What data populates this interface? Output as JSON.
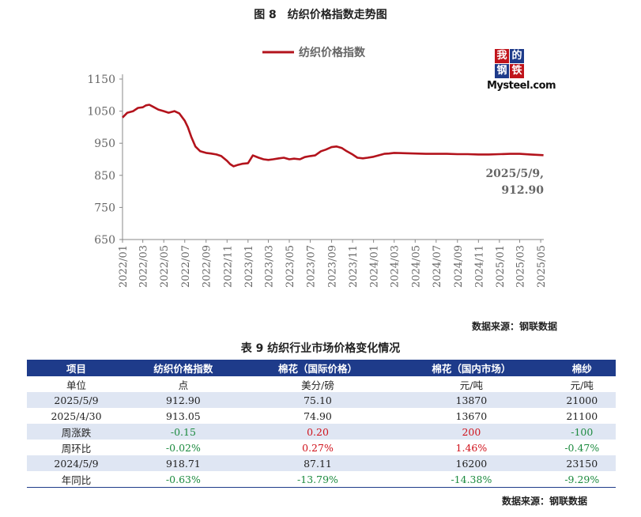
{
  "figure_title": "图 8　纺织价格指数走势图",
  "chart_source": "数据来源：钢联数据",
  "logo": {
    "cn": [
      "我",
      "的",
      "钢",
      "铁"
    ],
    "word": "Mysteel.com"
  },
  "chart_data": {
    "type": "line",
    "legend_position": "top",
    "grid": false,
    "ylim": [
      650,
      1150
    ],
    "yticks": [
      "650",
      "750",
      "850",
      "950",
      "1050",
      "1150"
    ],
    "xticks": [
      "2022/01",
      "2022/03",
      "2022/05",
      "2022/07",
      "2022/09",
      "2022/11",
      "2023/01",
      "2023/03",
      "2023/05",
      "2023/07",
      "2023/09",
      "2023/11",
      "2024/01",
      "2024/03",
      "2024/05",
      "2024/07",
      "2024/09",
      "2024/11",
      "2025/01",
      "2025/03",
      "2025/05"
    ],
    "annotation": [
      "2025/5/9,",
      "912.90"
    ],
    "series": [
      {
        "name": "纺织价格指数",
        "color": "#b3131c",
        "x": [
          "2022/01/01",
          "2022/01/15",
          "2022/02/01",
          "2022/02/15",
          "2022/03/01",
          "2022/03/10",
          "2022/03/20",
          "2022/04/01",
          "2022/04/15",
          "2022/05/01",
          "2022/05/15",
          "2022/06/01",
          "2022/06/15",
          "2022/07/01",
          "2022/07/10",
          "2022/07/20",
          "2022/08/01",
          "2022/08/15",
          "2022/09/01",
          "2022/09/15",
          "2022/10/01",
          "2022/10/15",
          "2022/11/01",
          "2022/11/10",
          "2022/11/20",
          "2022/12/01",
          "2022/12/15",
          "2023/01/01",
          "2023/01/15",
          "2023/02/01",
          "2023/02/15",
          "2023/03/01",
          "2023/03/15",
          "2023/04/01",
          "2023/04/15",
          "2023/05/01",
          "2023/05/15",
          "2023/06/01",
          "2023/06/15",
          "2023/07/01",
          "2023/07/15",
          "2023/08/01",
          "2023/08/15",
          "2023/09/01",
          "2023/09/15",
          "2023/10/01",
          "2023/10/15",
          "2023/11/01",
          "2023/11/15",
          "2023/12/01",
          "2023/12/15",
          "2024/01/01",
          "2024/01/15",
          "2024/02/01",
          "2024/02/15",
          "2024/03/01",
          "2024/04/01",
          "2024/05/01",
          "2024/06/01",
          "2024/07/01",
          "2024/08/01",
          "2024/09/01",
          "2024/10/01",
          "2024/11/01",
          "2024/12/01",
          "2025/01/01",
          "2025/02/01",
          "2025/03/01",
          "2025/04/01",
          "2025/05/09"
        ],
        "values": [
          1030,
          1045,
          1050,
          1060,
          1062,
          1068,
          1070,
          1063,
          1055,
          1050,
          1045,
          1050,
          1043,
          1020,
          1000,
          970,
          940,
          925,
          920,
          918,
          915,
          910,
          895,
          885,
          878,
          882,
          886,
          888,
          912,
          905,
          900,
          898,
          900,
          903,
          905,
          900,
          902,
          900,
          907,
          910,
          912,
          925,
          930,
          938,
          940,
          935,
          925,
          915,
          905,
          903,
          905,
          908,
          912,
          917,
          918,
          920,
          919,
          918,
          917,
          917,
          917,
          916,
          916,
          915,
          915,
          916,
          917,
          917,
          915,
          912.9
        ]
      }
    ]
  },
  "table": {
    "title": "表 9 纺织行业市场价格变化情况",
    "headers": [
      "项目",
      "纺织价格指数",
      "棉花（国际价格）",
      "棉花（国内市场）",
      "棉纱"
    ],
    "rows": [
      {
        "cells": [
          "单位",
          "点",
          "美分/磅",
          "元/吨",
          "元/吨"
        ],
        "tones": [
          "",
          "",
          "",
          "",
          ""
        ]
      },
      {
        "cells": [
          "2025/5/9",
          "912.90",
          "75.10",
          "13870",
          "21000"
        ],
        "tones": [
          "",
          "",
          "",
          "",
          ""
        ]
      },
      {
        "cells": [
          "2025/4/30",
          "913.05",
          "74.90",
          "13670",
          "21100"
        ],
        "tones": [
          "",
          "",
          "",
          "",
          ""
        ]
      },
      {
        "cells": [
          "周涨跌",
          "-0.15",
          "0.20",
          "200",
          "-100"
        ],
        "tones": [
          "",
          "neg",
          "pos",
          "pos",
          "neg"
        ]
      },
      {
        "cells": [
          "周环比",
          "-0.02%",
          "0.27%",
          "1.46%",
          "-0.47%"
        ],
        "tones": [
          "",
          "neg",
          "pos",
          "pos",
          "neg"
        ]
      },
      {
        "cells": [
          "2024/5/9",
          "918.71",
          "87.11",
          "16200",
          "23150"
        ],
        "tones": [
          "",
          "",
          "",
          "",
          ""
        ]
      },
      {
        "cells": [
          "年同比",
          "-0.63%",
          "-13.79%",
          "-14.38%",
          "-9.29%"
        ],
        "tones": [
          "",
          "neg",
          "neg",
          "neg",
          "neg"
        ]
      }
    ]
  },
  "table_source": "数据来源：钢联数据"
}
